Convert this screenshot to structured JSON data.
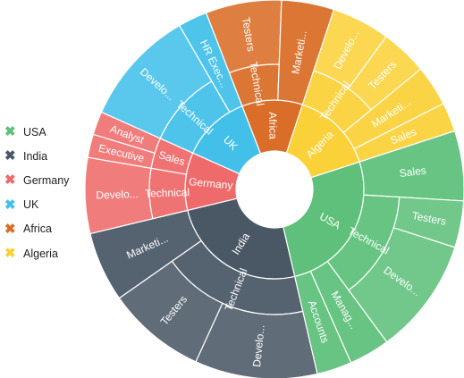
{
  "chart_data": {
    "type": "sunburst",
    "legend_position": "left",
    "series": [
      {
        "name": "USA",
        "color": "#5ec07a",
        "children": [
          {
            "name": "Sales",
            "value": 12
          },
          {
            "name": "Technical",
            "children": [
              {
                "name": "Testers",
                "value": 8
              },
              {
                "name": "Developers",
                "display": "Develo...",
                "value": 20
              }
            ]
          },
          {
            "name": "Management",
            "display": "Manag...",
            "value": 7
          },
          {
            "name": "Accounts",
            "display": "Accounts",
            "value": 6
          }
        ]
      },
      {
        "name": "India",
        "color": "#4a5866",
        "children": [
          {
            "name": "Technical",
            "children": [
              {
                "name": "Developers",
                "display": "Develo...",
                "value": 21
              },
              {
                "name": "Testers",
                "value": 17
              }
            ]
          },
          {
            "name": "Marketing",
            "display": "Marketi...",
            "value": 12
          }
        ]
      },
      {
        "name": "Germany",
        "color": "#ef6a6a",
        "children": [
          {
            "name": "Technical",
            "children": [
              {
                "name": "Developers",
                "display": "Develo...",
                "value": 13
              }
            ]
          },
          {
            "name": "Sales",
            "children": [
              {
                "name": "Executive",
                "value": 4
              },
              {
                "name": "Analyst",
                "value": 4
              }
            ]
          }
        ]
      },
      {
        "name": "UK",
        "color": "#43c0ea",
        "children": [
          {
            "name": "Technical",
            "children": [
              {
                "name": "Developers",
                "display": "Develo...",
                "value": 20
              }
            ]
          },
          {
            "name": "HR Executives",
            "display": "HR Exec...",
            "value": 5
          }
        ]
      },
      {
        "name": "Africa",
        "color": "#da6d27",
        "children": [
          {
            "name": "Technical",
            "children": [
              {
                "name": "Testers",
                "value": 13
              }
            ]
          },
          {
            "name": "Marketing",
            "display": "Marketi...",
            "value": 9
          }
        ]
      },
      {
        "name": "Algeria",
        "color": "#fbd13a",
        "children": [
          {
            "name": "Technical",
            "children": [
              {
                "name": "Developers",
                "display": "Develo...",
                "value": 10
              },
              {
                "name": "Testers",
                "value": 8
              }
            ]
          },
          {
            "name": "Marketing",
            "display": "Marketi...",
            "value": 7
          },
          {
            "name": "Sales",
            "value": 5
          }
        ]
      }
    ]
  },
  "legend": [
    {
      "label": "USA",
      "color": "#5ec07a"
    },
    {
      "label": "India",
      "color": "#4a5866"
    },
    {
      "label": "Germany",
      "color": "#ef6a6a"
    },
    {
      "label": "UK",
      "color": "#43c0ea"
    },
    {
      "label": "Africa",
      "color": "#da6d27"
    },
    {
      "label": "Algeria",
      "color": "#fbd13a"
    }
  ]
}
